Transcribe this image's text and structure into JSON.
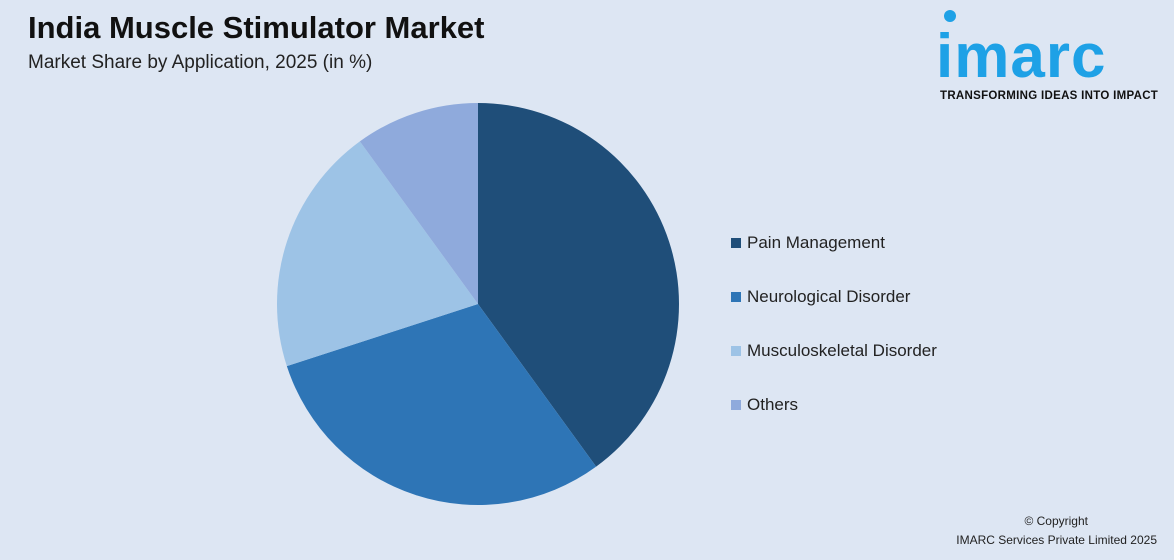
{
  "header": {
    "title": "India Muscle Stimulator Market",
    "subtitle": "Market Share by Application, 2025 (in %)"
  },
  "logo": {
    "text": "imarc",
    "tagline": "TRANSFORMING IDEAS INTO IMPACT",
    "color": "#1ea1e6"
  },
  "chart_data": {
    "type": "pie",
    "title": "India Muscle Stimulator Market",
    "subtitle": "Market Share by Application, 2025 (in %)",
    "legend_placement": "right",
    "categories": [
      "Pain Management",
      "Neurological Disorder",
      "Musculoskeletal Disorder",
      "Others"
    ],
    "values": [
      40,
      30,
      20,
      10
    ],
    "colors": [
      "#1f4e79",
      "#2e75b6",
      "#9dc3e6",
      "#8faadc"
    ]
  },
  "footer": {
    "copyright": "© Copyright",
    "company": "IMARC Services Private Limited 2025"
  }
}
